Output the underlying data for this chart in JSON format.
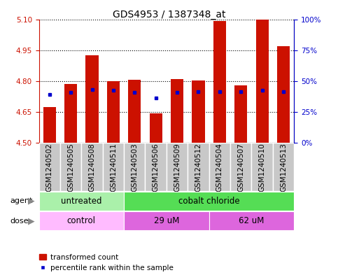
{
  "title": "GDS4953 / 1387348_at",
  "samples": [
    "GSM1240502",
    "GSM1240505",
    "GSM1240508",
    "GSM1240511",
    "GSM1240503",
    "GSM1240506",
    "GSM1240509",
    "GSM1240512",
    "GSM1240504",
    "GSM1240507",
    "GSM1240510",
    "GSM1240513"
  ],
  "red_values": [
    4.675,
    4.785,
    4.925,
    4.8,
    4.805,
    4.645,
    4.81,
    4.803,
    5.09,
    4.78,
    5.1,
    4.97
  ],
  "blue_values": [
    4.735,
    4.745,
    4.76,
    4.755,
    4.745,
    4.72,
    4.745,
    4.748,
    4.75,
    4.748,
    4.755,
    4.748
  ],
  "ymin": 4.5,
  "ymax": 5.1,
  "yticks": [
    4.5,
    4.65,
    4.8,
    4.95,
    5.1
  ],
  "right_yticks": [
    0,
    25,
    50,
    75,
    100
  ],
  "bar_color": "#cc1100",
  "dot_color": "#0000cc",
  "tick_color_left": "#cc1100",
  "tick_color_right": "#0000cc",
  "label_bg": "#c8c8c8",
  "agent_untreated_color": "#aaf0aa",
  "agent_cobalt_color": "#55dd55",
  "dose_control_color": "#ffbbff",
  "dose_um_color": "#dd66dd",
  "grid_linestyle": ":",
  "grid_linewidth": 0.8,
  "bar_width": 0.6,
  "label_fontsize": 7.5,
  "tick_fontsize": 7.5,
  "title_fontsize": 10
}
